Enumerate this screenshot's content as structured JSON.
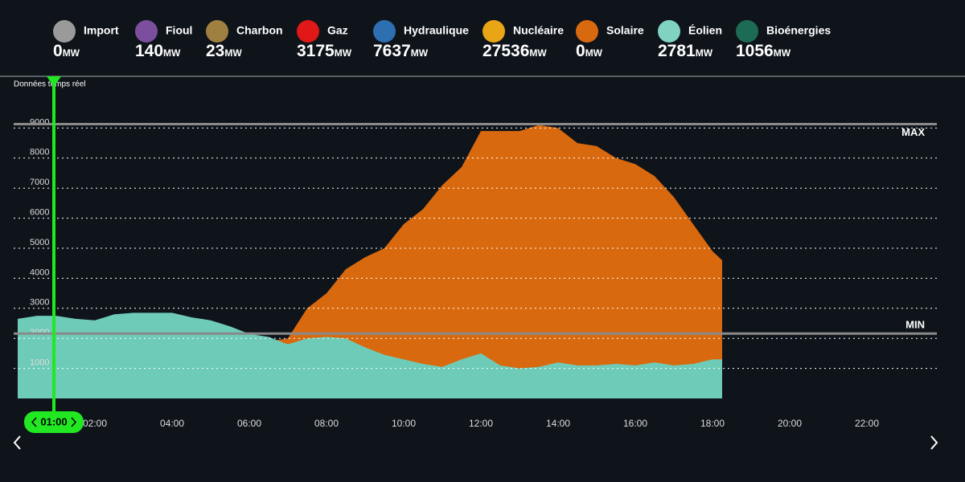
{
  "sources": [
    {
      "name": "Import",
      "value": 0,
      "color": "#9a9a9a"
    },
    {
      "name": "Fioul",
      "value": 140,
      "color": "#7b4f9e"
    },
    {
      "name": "Charbon",
      "value": 23,
      "color": "#a08040"
    },
    {
      "name": "Gaz",
      "value": 3175,
      "color": "#e01818"
    },
    {
      "name": "Hydraulique",
      "value": 7637,
      "color": "#2d6fb0"
    },
    {
      "name": "Nucléaire",
      "value": 27536,
      "color": "#e8a617"
    },
    {
      "name": "Solaire",
      "value": 0,
      "color": "#d9690e"
    },
    {
      "name": "Éolien",
      "value": 2781,
      "color": "#7fd3c0"
    },
    {
      "name": "Bioénergies",
      "value": 1056,
      "color": "#1d6b55"
    }
  ],
  "unit": "MW",
  "chart_data": {
    "type": "area",
    "subtitle": "Données temps réel",
    "x": [
      0,
      0.5,
      1,
      1.5,
      2,
      2.5,
      3,
      3.5,
      4,
      4.5,
      5,
      5.5,
      6,
      6.5,
      7,
      7.5,
      8,
      8.5,
      9,
      9.5,
      10,
      10.5,
      11,
      11.5,
      12,
      12.5,
      13,
      13.5,
      14,
      14.5,
      15,
      15.5,
      16,
      16.5,
      17,
      17.5,
      18,
      18.25
    ],
    "series": [
      {
        "color": "#d9690e",
        "values": [
          0,
          0,
          0,
          0,
          0,
          0,
          0,
          0,
          0,
          0,
          0,
          0,
          500,
          1900,
          2000,
          3000,
          3500,
          4300,
          4700,
          5000,
          5800,
          6300,
          7100,
          7700,
          8900,
          8900,
          8900,
          9100,
          9000,
          8500,
          8400,
          8000,
          7800,
          7400,
          6700,
          5800,
          4900,
          4600
        ]
      },
      {
        "color": "#6ecbb7",
        "values": [
          2650,
          2750,
          2750,
          2650,
          2600,
          2800,
          2850,
          2850,
          2850,
          2700,
          2600,
          2400,
          2150,
          2050,
          1800,
          2000,
          2050,
          2000,
          1700,
          1450,
          1300,
          1150,
          1050,
          1300,
          1500,
          1100,
          1000,
          1050,
          1200,
          1100,
          1100,
          1150,
          1100,
          1200,
          1100,
          1150,
          1300,
          1300
        ]
      }
    ],
    "xlim": [
      0,
      24
    ],
    "xticks": [
      {
        "value": 2,
        "label": "02:00"
      },
      {
        "value": 4,
        "label": "04:00"
      },
      {
        "value": 6,
        "label": "06:00"
      },
      {
        "value": 8,
        "label": "08:00"
      },
      {
        "value": 10,
        "label": "10:00"
      },
      {
        "value": 12,
        "label": "12:00"
      },
      {
        "value": 14,
        "label": "14:00"
      },
      {
        "value": 16,
        "label": "16:00"
      },
      {
        "value": 18,
        "label": "18:00"
      },
      {
        "value": 20,
        "label": "20:00"
      },
      {
        "value": 22,
        "label": "22:00"
      }
    ],
    "ylim": [
      0,
      9465
    ],
    "yticks": [
      1000,
      2000,
      3000,
      4000,
      5000,
      6000,
      7000,
      8000,
      9000
    ],
    "grid": true,
    "max_line": {
      "value": 9130,
      "label": "MAX"
    },
    "min_line": {
      "value": 2160,
      "label": "MIN"
    },
    "cursor": {
      "x": 1,
      "label": "01:00"
    }
  }
}
